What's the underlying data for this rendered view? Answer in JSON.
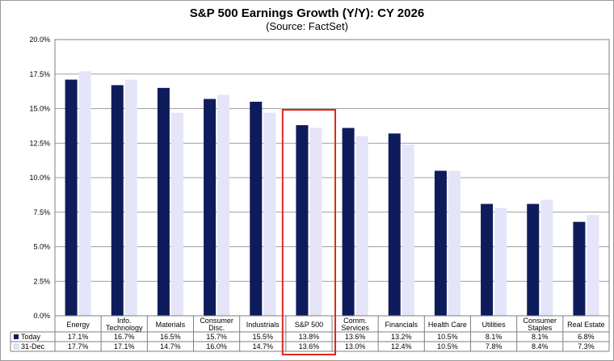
{
  "chart_data": {
    "type": "bar",
    "title": "S&P 500 Earnings Growth (Y/Y): CY 2026",
    "subtitle": "(Source: FactSet)",
    "categories": [
      [
        "Energy"
      ],
      [
        "Info.",
        "Technology"
      ],
      [
        "Materials"
      ],
      [
        "Consumer",
        "Disc."
      ],
      [
        "Industrials"
      ],
      [
        "S&P 500"
      ],
      [
        "Comm.",
        "Services"
      ],
      [
        "Financials"
      ],
      [
        "Health Care"
      ],
      [
        "Utilities"
      ],
      [
        "Consumer",
        "Staples"
      ],
      [
        "Real Estate"
      ]
    ],
    "series": [
      {
        "name": "Today",
        "color": "#0e1c5c",
        "values": [
          17.1,
          16.7,
          16.5,
          15.7,
          15.5,
          13.8,
          13.6,
          13.2,
          10.5,
          8.1,
          8.1,
          6.8
        ],
        "labels": [
          "17.1%",
          "16.7%",
          "16.5%",
          "15.7%",
          "15.5%",
          "13.8%",
          "13.6%",
          "13.2%",
          "10.5%",
          "8.1%",
          "8.1%",
          "6.8%"
        ]
      },
      {
        "name": "31-Dec",
        "color": "#e4e5f8",
        "values": [
          17.7,
          17.1,
          14.7,
          16.0,
          14.7,
          13.6,
          13.0,
          12.4,
          10.5,
          7.8,
          8.4,
          7.3
        ],
        "labels": [
          "17.7%",
          "17.1%",
          "14.7%",
          "16.0%",
          "14.7%",
          "13.6%",
          "13.0%",
          "12.4%",
          "10.5%",
          "7.8%",
          "8.4%",
          "7.3%"
        ]
      }
    ],
    "ylim": [
      0,
      20
    ],
    "yticks": [
      0,
      2.5,
      5,
      7.5,
      10,
      12.5,
      15,
      17.5,
      20
    ],
    "ytick_labels": [
      "0.0%",
      "2.5%",
      "5.0%",
      "7.5%",
      "10.0%",
      "12.5%",
      "15.0%",
      "17.5%",
      "20.0%"
    ],
    "grid": true,
    "legend": "data-table",
    "highlight_category_index": 5,
    "highlight_color": "#e0281e"
  }
}
